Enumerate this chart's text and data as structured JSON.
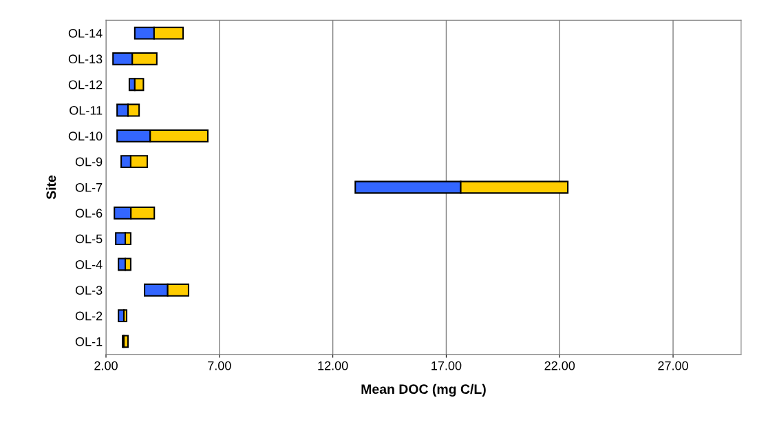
{
  "chart_data": {
    "type": "bar",
    "orientation": "horizontal",
    "xlabel": "Mean DOC (mg C/L)",
    "ylabel": "Site",
    "categories": [
      "OL-14",
      "OL-13",
      "OL-12",
      "OL-11",
      "OL-10",
      "OL-9",
      "OL-7",
      "OL-6",
      "OL-5",
      "OL-4",
      "OL-3",
      "OL-2",
      "OL-1"
    ],
    "series": [
      {
        "color": "#3366ff",
        "base": [
          3.27,
          2.31,
          3.03,
          2.49,
          2.49,
          2.67,
          12.99,
          2.37,
          2.43,
          2.55,
          3.7,
          2.55,
          2.73
        ],
        "values": [
          0.85,
          0.85,
          0.24,
          0.48,
          1.46,
          0.42,
          4.65,
          0.73,
          0.42,
          0.3,
          1.02,
          0.24,
          0.06
        ]
      },
      {
        "color": "#ffcc00",
        "base": [
          4.12,
          3.16,
          3.27,
          2.97,
          3.95,
          3.09,
          17.64,
          3.1,
          2.85,
          2.85,
          4.72,
          2.79,
          2.79
        ],
        "values": [
          1.28,
          1.08,
          0.38,
          0.49,
          2.54,
          0.73,
          4.72,
          1.03,
          0.24,
          0.24,
          0.92,
          0.12,
          0.18
        ]
      }
    ],
    "xlim": [
      2,
      30
    ],
    "xticks": [
      {
        "value": 2,
        "label": "2.00"
      },
      {
        "value": 7,
        "label": "7.00"
      },
      {
        "value": 12,
        "label": "12.00"
      },
      {
        "value": 17,
        "label": "17.00"
      },
      {
        "value": 22,
        "label": "22.00"
      },
      {
        "value": 27,
        "label": "27.00"
      }
    ],
    "grid": "x"
  }
}
